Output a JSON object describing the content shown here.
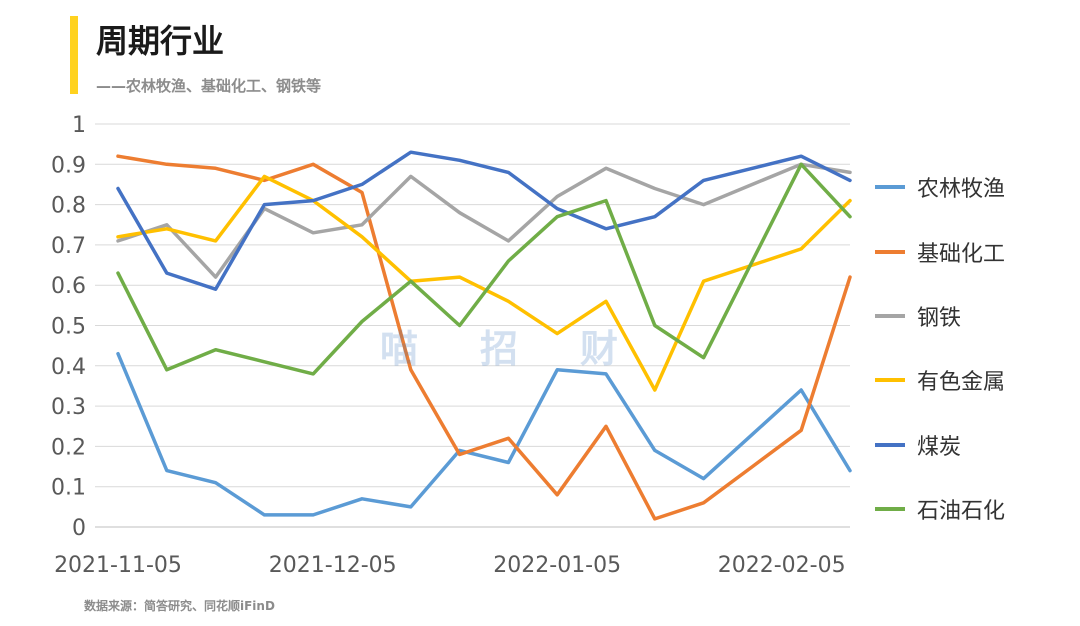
{
  "header": {
    "title": "周期行业",
    "subtitle": "——农林牧渔、基础化工、钢铁等",
    "accent_color": "#FFD21F"
  },
  "footer": {
    "source": "数据来源：简答研究、同花顺iFinD"
  },
  "watermark": "喵招财",
  "chart_data": {
    "type": "line",
    "title": "",
    "xlabel": "",
    "ylabel": "",
    "ylim": [
      0,
      1
    ],
    "yticks": [
      "0",
      "0.1",
      "0.2",
      "0.3",
      "0.4",
      "0.5",
      "0.6",
      "0.7",
      "0.8",
      "0.9",
      "1"
    ],
    "x_tick_labels": [
      "2021-11-05",
      "2021-12-05",
      "2022-01-05",
      "2022-02-05"
    ],
    "x_tick_index": [
      0,
      4.4,
      9,
      13.6
    ],
    "grid": true,
    "legend_position": "right",
    "series": [
      {
        "name": "农林牧渔",
        "color": "#5B9BD5",
        "values": [
          0.43,
          0.14,
          0.11,
          0.03,
          0.03,
          0.07,
          0.05,
          0.19,
          0.16,
          0.39,
          0.38,
          0.19,
          0.12,
          0.23,
          0.34,
          0.14
        ]
      },
      {
        "name": "基础化工",
        "color": "#ED7D31",
        "values": [
          0.92,
          0.9,
          0.89,
          0.86,
          0.9,
          0.83,
          0.39,
          0.18,
          0.22,
          0.08,
          0.25,
          0.02,
          0.06,
          0.15,
          0.24,
          0.62
        ]
      },
      {
        "name": "钢铁",
        "color": "#A5A5A5",
        "values": [
          0.71,
          0.75,
          0.62,
          0.79,
          0.73,
          0.75,
          0.87,
          0.78,
          0.71,
          0.82,
          0.89,
          0.84,
          0.8,
          0.85,
          0.9,
          0.88
        ]
      },
      {
        "name": "有色金属",
        "color": "#FFC000",
        "values": [
          0.72,
          0.74,
          0.71,
          0.87,
          0.81,
          0.72,
          0.61,
          0.62,
          0.56,
          0.48,
          0.56,
          0.34,
          0.61,
          0.65,
          0.69,
          0.81
        ]
      },
      {
        "name": "煤炭",
        "color": "#4472C4",
        "values": [
          0.84,
          0.63,
          0.59,
          0.8,
          0.81,
          0.85,
          0.93,
          0.91,
          0.88,
          0.79,
          0.74,
          0.77,
          0.86,
          0.89,
          0.92,
          0.86
        ]
      },
      {
        "name": "石油石化",
        "color": "#70AD47",
        "values": [
          0.63,
          0.39,
          0.44,
          0.41,
          0.38,
          0.51,
          0.61,
          0.5,
          0.66,
          0.77,
          0.81,
          0.5,
          0.42,
          0.66,
          0.9,
          0.77
        ]
      }
    ]
  }
}
